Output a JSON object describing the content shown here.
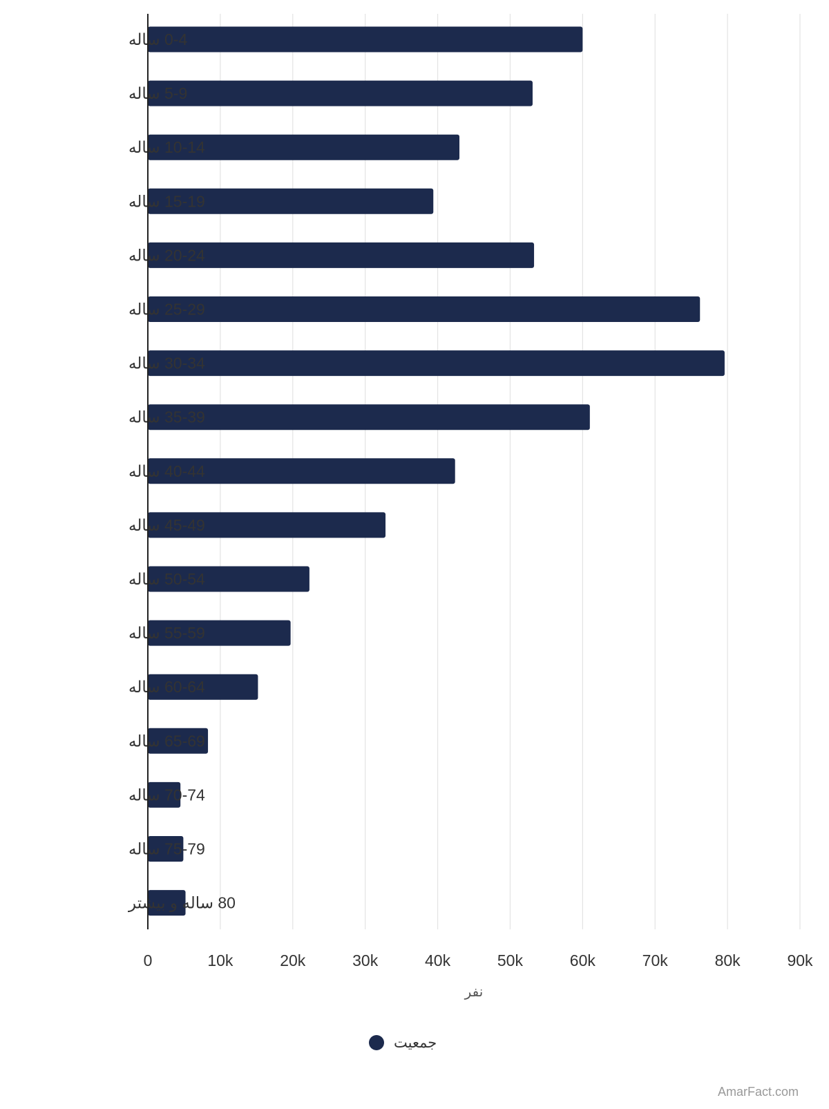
{
  "chart_data": {
    "type": "bar",
    "orientation": "horizontal",
    "categories": [
      "0-4 ساله",
      "5-9 ساله",
      "10-14 ساله",
      "15-19 ساله",
      "20-24 ساله",
      "25-29 ساله",
      "30-34 ساله",
      "35-39 ساله",
      "40-44 ساله",
      "45-49 ساله",
      "50-54 ساله",
      "55-59 ساله",
      "60-64 ساله",
      "65-69 ساله",
      "70-74 ساله",
      "75-79 ساله",
      "80 ساله و بیشتر"
    ],
    "series": [
      {
        "name": "جمعیت",
        "color": "#1c2a4d",
        "values": [
          60000,
          53100,
          43000,
          39400,
          53300,
          76200,
          79600,
          61000,
          42400,
          32800,
          22300,
          19700,
          15200,
          8300,
          4500,
          4900,
          5200
        ]
      }
    ],
    "xlabel": "نفر",
    "ylabel": "",
    "xlim": [
      0,
      90000
    ],
    "xticks": [
      0,
      10000,
      20000,
      30000,
      40000,
      50000,
      60000,
      70000,
      80000,
      90000
    ],
    "xtick_labels": [
      "0",
      "10k",
      "20k",
      "30k",
      "40k",
      "50k",
      "60k",
      "70k",
      "80k",
      "90k"
    ],
    "grid": "vertical",
    "legend_position": "bottom-center"
  },
  "watermark": "AmarFact.com",
  "colors": {
    "bar": "#1c2a4d",
    "grid": "#e3e3e3",
    "axis": "#222222"
  }
}
